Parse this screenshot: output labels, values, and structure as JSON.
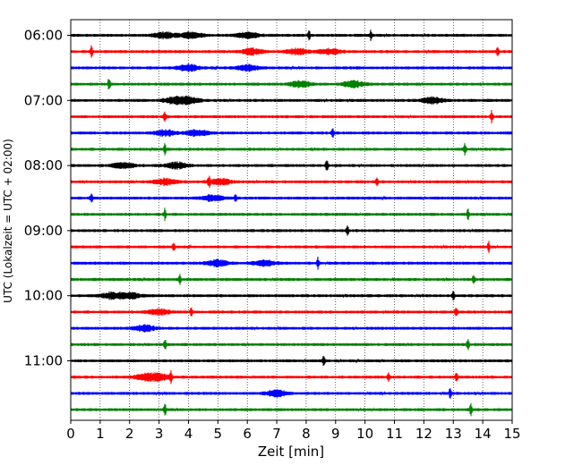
{
  "chart_data": {
    "type": "line",
    "title": "",
    "xlabel": "Zeit  [min]",
    "ylabel": "UTC (Lokalzeit = UTC + 02:00)",
    "xlim": [
      0,
      15
    ],
    "x_ticks": [
      0,
      1,
      2,
      3,
      4,
      5,
      6,
      7,
      8,
      9,
      10,
      11,
      12,
      13,
      14,
      15
    ],
    "y_tick_labels": [
      "06:00",
      "07:00",
      "08:00",
      "09:00",
      "10:00",
      "11:00"
    ],
    "grid": "vertical dotted lines at each minute",
    "trace_interval_minutes": 15,
    "colors": [
      "#000000",
      "#ff0000",
      "#0000ff",
      "#008000"
    ],
    "series": [
      {
        "start": "06:00",
        "color": "#000000",
        "spikes": [
          8.1,
          10.2
        ],
        "bursts": [
          3.2,
          4.1,
          6.0
        ]
      },
      {
        "start": "06:15",
        "color": "#ff0000",
        "spikes": [
          0.7,
          14.5
        ],
        "bursts": [
          6.2,
          7.7,
          8.8
        ]
      },
      {
        "start": "06:30",
        "color": "#0000ff",
        "spikes": [],
        "bursts": [
          4.0,
          6.0
        ]
      },
      {
        "start": "06:45",
        "color": "#008000",
        "spikes": [
          1.3
        ],
        "bursts": [
          7.8,
          9.6
        ]
      },
      {
        "start": "07:00",
        "color": "#000000",
        "spikes": [],
        "bursts": [
          3.5,
          4.0,
          12.3
        ]
      },
      {
        "start": "07:15",
        "color": "#ff0000",
        "spikes": [
          3.2,
          14.3
        ],
        "bursts": []
      },
      {
        "start": "07:30",
        "color": "#0000ff",
        "spikes": [
          8.9
        ],
        "bursts": [
          3.2,
          4.3
        ]
      },
      {
        "start": "07:45",
        "color": "#008000",
        "spikes": [
          3.2,
          13.4
        ],
        "bursts": []
      },
      {
        "start": "08:00",
        "color": "#000000",
        "spikes": [
          8.7
        ],
        "bursts": [
          1.8,
          3.6
        ]
      },
      {
        "start": "08:15",
        "color": "#ff0000",
        "spikes": [
          4.7,
          10.4
        ],
        "bursts": [
          3.2,
          5.1
        ]
      },
      {
        "start": "08:30",
        "color": "#0000ff",
        "spikes": [
          0.7,
          5.6
        ],
        "bursts": [
          4.8
        ]
      },
      {
        "start": "08:45",
        "color": "#008000",
        "spikes": [
          3.2,
          13.5
        ],
        "bursts": []
      },
      {
        "start": "09:00",
        "color": "#000000",
        "spikes": [
          9.4
        ],
        "bursts": []
      },
      {
        "start": "09:15",
        "color": "#ff0000",
        "spikes": [
          3.5,
          14.2
        ],
        "bursts": []
      },
      {
        "start": "09:30",
        "color": "#0000ff",
        "spikes": [
          8.4
        ],
        "bursts": [
          5.0,
          6.6
        ]
      },
      {
        "start": "09:45",
        "color": "#008000",
        "spikes": [
          3.7,
          13.7
        ],
        "bursts": []
      },
      {
        "start": "10:00",
        "color": "#000000",
        "spikes": [
          13.0
        ],
        "bursts": [
          1.4,
          2.0
        ]
      },
      {
        "start": "10:15",
        "color": "#ff0000",
        "spikes": [
          4.1,
          13.1
        ],
        "bursts": [
          3.0
        ]
      },
      {
        "start": "10:30",
        "color": "#0000ff",
        "spikes": [],
        "bursts": [
          2.5
        ]
      },
      {
        "start": "10:45",
        "color": "#008000",
        "spikes": [
          3.2,
          13.5
        ],
        "bursts": []
      },
      {
        "start": "11:00",
        "color": "#000000",
        "spikes": [
          8.6
        ],
        "bursts": []
      },
      {
        "start": "11:15",
        "color": "#ff0000",
        "spikes": [
          3.4,
          10.8,
          13.1
        ],
        "bursts": [
          2.5,
          3.0
        ]
      },
      {
        "start": "11:30",
        "color": "#0000ff",
        "spikes": [
          12.9
        ],
        "bursts": [
          7.0
        ]
      },
      {
        "start": "11:45",
        "color": "#008000",
        "spikes": [
          3.2,
          13.6
        ],
        "bursts": []
      }
    ]
  }
}
